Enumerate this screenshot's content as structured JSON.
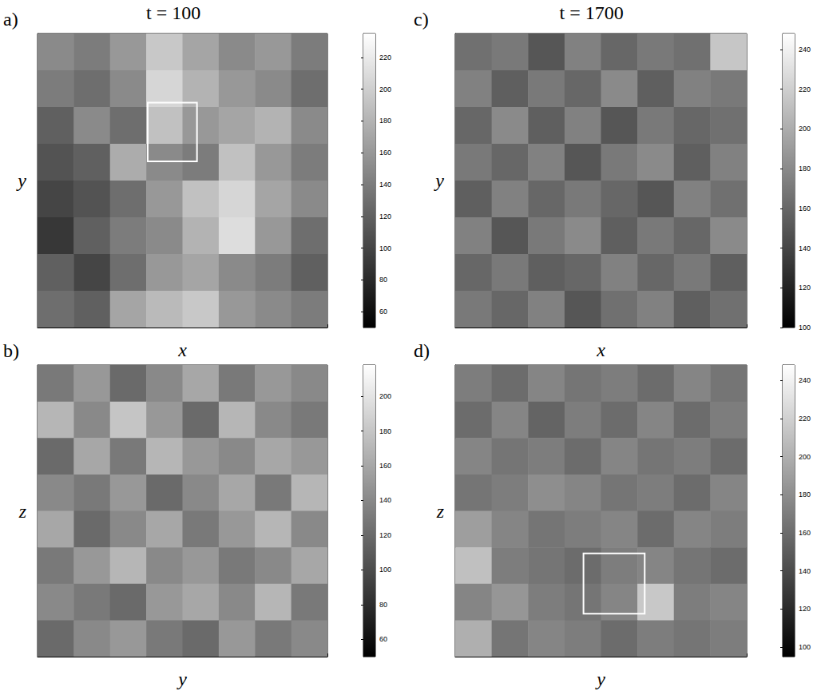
{
  "chart_data": [
    {
      "type": "heatmap",
      "label": "a)",
      "title": "t = 100",
      "xlabel": "x",
      "ylabel": "y",
      "xlim": [
        0,
        1
      ],
      "ylim": [
        0,
        1
      ],
      "xticks": [
        0,
        0.2,
        0.4,
        0.6,
        0.8,
        1
      ],
      "yticks": [
        0,
        0.2,
        0.4,
        0.6,
        0.8,
        1
      ],
      "tick_labels": false,
      "cells": [
        [
          150,
          140,
          160,
          195,
          170,
          150,
          160,
          140
        ],
        [
          140,
          130,
          150,
          205,
          180,
          160,
          150,
          130
        ],
        [
          120,
          150,
          130,
          190,
          160,
          170,
          180,
          150
        ],
        [
          110,
          120,
          175,
          150,
          140,
          190,
          160,
          140
        ],
        [
          100,
          110,
          130,
          160,
          190,
          205,
          170,
          150
        ],
        [
          90,
          120,
          140,
          150,
          180,
          210,
          160,
          130
        ],
        [
          120,
          100,
          130,
          160,
          170,
          150,
          140,
          120
        ],
        [
          130,
          120,
          170,
          185,
          195,
          160,
          150,
          140
        ]
      ],
      "color_range": [
        50,
        235
      ],
      "color_ticks": [
        60,
        80,
        100,
        120,
        140,
        160,
        180,
        200,
        220
      ],
      "box": {
        "x": [
          0.38,
          0.55
        ],
        "y": [
          0.565,
          0.765
        ]
      }
    },
    {
      "type": "heatmap",
      "label": "b)",
      "xlabel": "y",
      "ylabel": "z",
      "xlim": [
        0,
        1
      ],
      "ylim": [
        0,
        1
      ],
      "xticks": [
        0,
        0.2,
        0.4,
        0.6,
        0.8,
        1
      ],
      "yticks": [
        0,
        0.2,
        0.4,
        0.6,
        0.8,
        1
      ],
      "tick_labels": false,
      "cells": [
        [
          130,
          150,
          120,
          140,
          160,
          130,
          150,
          140
        ],
        [
          170,
          140,
          180,
          150,
          120,
          170,
          140,
          130
        ],
        [
          120,
          160,
          130,
          170,
          150,
          140,
          160,
          150
        ],
        [
          140,
          130,
          150,
          120,
          140,
          160,
          130,
          170
        ],
        [
          160,
          120,
          140,
          160,
          130,
          150,
          170,
          140
        ],
        [
          130,
          150,
          170,
          140,
          150,
          130,
          140,
          160
        ],
        [
          140,
          130,
          120,
          150,
          160,
          140,
          170,
          130
        ],
        [
          120,
          140,
          150,
          130,
          120,
          150,
          130,
          140
        ]
      ],
      "color_range": [
        50,
        218
      ],
      "color_ticks": [
        60,
        80,
        100,
        120,
        140,
        160,
        180,
        200
      ]
    },
    {
      "type": "heatmap",
      "label": "c)",
      "title": "t = 1700",
      "xlabel": "x",
      "ylabel": "y",
      "xlim": [
        0,
        1
      ],
      "ylim": [
        0,
        1
      ],
      "xticks": [
        0,
        0.2,
        0.4,
        0.6,
        0.8,
        1
      ],
      "yticks": [
        0,
        0.2,
        0.4,
        0.6,
        0.8,
        1
      ],
      "tick_labels": false,
      "cells": [
        [
          165,
          170,
          150,
          175,
          160,
          170,
          165,
          215
        ],
        [
          175,
          155,
          170,
          160,
          180,
          155,
          175,
          170
        ],
        [
          160,
          180,
          155,
          175,
          150,
          170,
          160,
          165
        ],
        [
          170,
          160,
          175,
          150,
          170,
          180,
          155,
          175
        ],
        [
          155,
          175,
          160,
          170,
          160,
          150,
          175,
          165
        ],
        [
          175,
          150,
          170,
          180,
          155,
          170,
          160,
          180
        ],
        [
          160,
          170,
          155,
          160,
          175,
          160,
          170,
          155
        ],
        [
          170,
          160,
          175,
          150,
          165,
          175,
          155,
          165
        ]
      ],
      "color_range": [
        100,
        248
      ],
      "color_ticks": [
        100,
        120,
        140,
        160,
        180,
        200,
        220,
        240
      ]
    },
    {
      "type": "heatmap",
      "label": "d)",
      "xlabel": "y",
      "ylabel": "z",
      "xlim": [
        0,
        1
      ],
      "ylim": [
        0,
        1
      ],
      "xticks": [
        0,
        0.2,
        0.4,
        0.6,
        0.8,
        1
      ],
      "yticks": [
        0,
        0.2,
        0.4,
        0.6,
        0.8,
        1
      ],
      "tick_labels": false,
      "cells": [
        [
          170,
          160,
          175,
          165,
          170,
          160,
          175,
          165
        ],
        [
          160,
          175,
          155,
          170,
          160,
          175,
          160,
          170
        ],
        [
          175,
          165,
          170,
          160,
          175,
          165,
          170,
          160
        ],
        [
          165,
          170,
          180,
          175,
          165,
          170,
          160,
          175
        ],
        [
          190,
          175,
          165,
          170,
          175,
          160,
          175,
          170
        ],
        [
          210,
          170,
          165,
          160,
          170,
          175,
          165,
          160
        ],
        [
          175,
          185,
          170,
          165,
          175,
          215,
          170,
          175
        ],
        [
          200,
          165,
          175,
          170,
          160,
          170,
          165,
          170
        ]
      ],
      "color_range": [
        95,
        248
      ],
      "color_ticks": [
        100,
        120,
        140,
        160,
        180,
        200,
        220,
        240
      ],
      "box": {
        "x": [
          0.44,
          0.65
        ],
        "y": [
          0.147,
          0.354
        ]
      }
    }
  ]
}
